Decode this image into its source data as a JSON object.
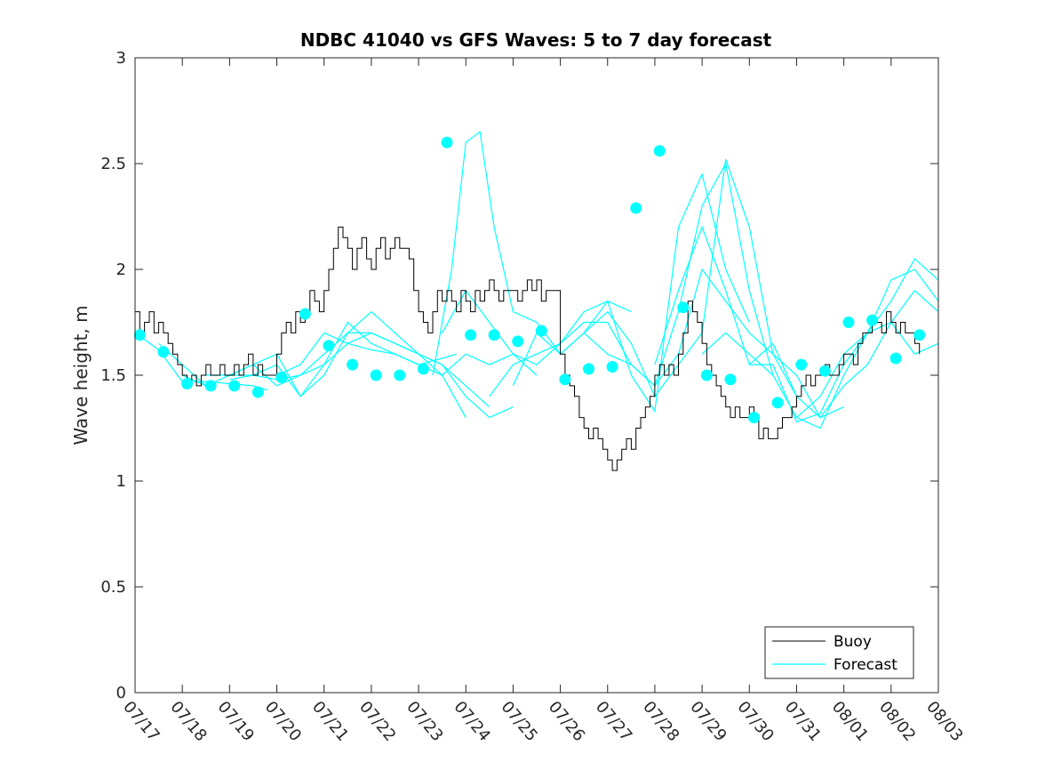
{
  "chart_data": {
    "type": "line",
    "title": "NDBC 41040 vs GFS Waves: 5 to 7 day forecast",
    "xlabel": "",
    "ylabel": "Wave height, m",
    "ylim": [
      0,
      3
    ],
    "yticks": [
      "0",
      "0.5",
      "1",
      "1.5",
      "2",
      "2.5",
      "3"
    ],
    "xlim": [
      "07/17",
      "08/03"
    ],
    "xticks": [
      "07/17",
      "07/18",
      "07/19",
      "07/20",
      "07/21",
      "07/22",
      "07/23",
      "07/24",
      "07/25",
      "07/26",
      "07/27",
      "07/28",
      "07/29",
      "07/30",
      "07/31",
      "08/01",
      "08/02",
      "08/03"
    ],
    "grid": false,
    "legend": {
      "placement": "bottom-right",
      "entries": [
        "Buoy",
        "Forecast"
      ]
    },
    "colors": {
      "buoy": "#000000",
      "forecast": "#00ffff"
    },
    "series": [
      {
        "name": "Buoy",
        "x_days": [
          0,
          0.1,
          0.2,
          0.3,
          0.4,
          0.5,
          0.6,
          0.7,
          0.8,
          0.9,
          1.0,
          1.1,
          1.2,
          1.3,
          1.4,
          1.5,
          1.6,
          1.7,
          1.8,
          1.9,
          2.0,
          2.1,
          2.2,
          2.3,
          2.4,
          2.5,
          2.6,
          2.7,
          2.8,
          2.9,
          3.0,
          3.1,
          3.2,
          3.3,
          3.4,
          3.5,
          3.6,
          3.7,
          3.8,
          3.9,
          4.0,
          4.1,
          4.2,
          4.3,
          4.4,
          4.5,
          4.6,
          4.7,
          4.8,
          4.9,
          5.0,
          5.1,
          5.2,
          5.3,
          5.4,
          5.5,
          5.6,
          5.7,
          5.8,
          5.9,
          6.0,
          6.1,
          6.2,
          6.3,
          6.4,
          6.5,
          6.6,
          6.7,
          6.8,
          6.9,
          7.0,
          7.1,
          7.2,
          7.3,
          7.4,
          7.5,
          7.6,
          7.7,
          7.8,
          7.9,
          8.0,
          8.1,
          8.2,
          8.3,
          8.4,
          8.5,
          8.6,
          8.7,
          8.8,
          8.9,
          9.0,
          9.1,
          9.2,
          9.3,
          9.4,
          9.5,
          9.6,
          9.7,
          9.8,
          9.9,
          10.0,
          10.1,
          10.2,
          10.3,
          10.4,
          10.5,
          10.6,
          10.7,
          10.8,
          10.9,
          11.0,
          11.1,
          11.2,
          11.3,
          11.4,
          11.5,
          11.6,
          11.7,
          11.8,
          11.9,
          12.0,
          12.1,
          12.2,
          12.3,
          12.4,
          12.5,
          12.6,
          12.7,
          12.8,
          12.9,
          13.0,
          13.1,
          13.2,
          13.3,
          13.4,
          13.5,
          13.6,
          13.7,
          13.8,
          13.9,
          14.0,
          14.1,
          14.2,
          14.3,
          14.4,
          14.5,
          14.6,
          14.7,
          14.8,
          14.9,
          15.0,
          15.1,
          15.2,
          15.3,
          15.4,
          15.5,
          15.6,
          15.7,
          15.8,
          15.9,
          16.0,
          16.1,
          16.2,
          16.3,
          16.4,
          16.5,
          16.6
        ],
        "values": [
          1.8,
          1.7,
          1.75,
          1.8,
          1.7,
          1.75,
          1.7,
          1.65,
          1.6,
          1.55,
          1.5,
          1.45,
          1.5,
          1.45,
          1.5,
          1.55,
          1.5,
          1.5,
          1.55,
          1.5,
          1.5,
          1.55,
          1.5,
          1.55,
          1.6,
          1.5,
          1.55,
          1.5,
          1.5,
          1.5,
          1.6,
          1.7,
          1.75,
          1.7,
          1.8,
          1.75,
          1.8,
          1.9,
          1.85,
          1.8,
          1.9,
          2.0,
          2.1,
          2.2,
          2.15,
          2.1,
          2.0,
          2.1,
          2.15,
          2.05,
          2.0,
          2.1,
          2.15,
          2.05,
          2.1,
          2.15,
          2.1,
          2.1,
          2.05,
          1.9,
          1.8,
          1.75,
          1.7,
          1.8,
          1.9,
          1.85,
          1.9,
          1.85,
          1.8,
          1.9,
          1.85,
          1.8,
          1.9,
          1.85,
          1.9,
          1.95,
          1.9,
          1.85,
          1.9,
          1.9,
          1.9,
          1.85,
          1.9,
          1.95,
          1.9,
          1.95,
          1.85,
          1.9,
          1.9,
          1.9,
          1.6,
          1.5,
          1.45,
          1.4,
          1.3,
          1.25,
          1.2,
          1.25,
          1.2,
          1.15,
          1.1,
          1.05,
          1.1,
          1.15,
          1.2,
          1.15,
          1.25,
          1.3,
          1.35,
          1.4,
          1.5,
          1.55,
          1.5,
          1.55,
          1.5,
          1.6,
          1.7,
          1.85,
          1.8,
          1.75,
          1.65,
          1.55,
          1.5,
          1.45,
          1.4,
          1.35,
          1.3,
          1.35,
          1.3,
          1.3,
          1.35,
          1.3,
          1.2,
          1.25,
          1.2,
          1.2,
          1.25,
          1.3,
          1.3,
          1.35,
          1.4,
          1.45,
          1.5,
          1.45,
          1.5,
          1.5,
          1.55,
          1.5,
          1.5,
          1.55,
          1.6,
          1.6,
          1.55,
          1.65,
          1.7,
          1.7,
          1.75,
          1.75,
          1.7,
          1.8,
          1.75,
          1.7,
          1.75,
          1.7,
          1.7,
          1.65,
          1.6
        ]
      },
      {
        "name": "Forecast",
        "runs": [
          {
            "x_days": [
              0,
              0.5,
              1.0,
              1.5,
              2.0,
              2.5,
              2.8
            ],
            "values": [
              1.7,
              1.62,
              1.47,
              1.47,
              1.46,
              1.45,
              1.43
            ]
          },
          {
            "x_days": [
              0.5,
              1.0,
              1.5,
              2.0,
              2.5,
              3.0,
              3.5,
              4.0,
              4.5,
              5.0,
              5.5,
              6.0,
              6.5,
              7.0
            ],
            "values": [
              1.65,
              1.55,
              1.45,
              1.5,
              1.55,
              1.6,
              1.4,
              1.5,
              1.7,
              1.8,
              1.7,
              1.6,
              1.5,
              1.3
            ]
          },
          {
            "x_days": [
              1.0,
              1.5,
              2.0,
              2.5,
              3.0,
              3.5,
              4.0,
              4.5,
              5.0,
              5.5,
              6.0,
              6.5,
              7.0,
              7.5
            ],
            "values": [
              1.5,
              1.45,
              1.5,
              1.55,
              1.45,
              1.5,
              1.6,
              1.7,
              1.7,
              1.65,
              1.6,
              1.55,
              1.45,
              1.35
            ]
          },
          {
            "x_days": [
              1.5,
              2.0,
              2.5,
              3.0,
              3.5,
              4.0,
              4.5,
              5.0,
              5.5,
              6.0,
              6.5,
              7.0,
              7.5,
              8.0
            ],
            "values": [
              1.5,
              1.5,
              1.5,
              1.48,
              1.5,
              1.55,
              1.65,
              1.7,
              1.65,
              1.6,
              1.55,
              1.4,
              1.3,
              1.35
            ]
          },
          {
            "x_days": [
              2.0,
              2.5,
              3.0,
              3.5,
              4.0,
              4.5,
              5.0,
              5.5,
              6.0,
              6.5,
              7.0,
              7.5,
              8.0,
              8.5
            ],
            "values": [
              1.48,
              1.5,
              1.55,
              1.4,
              1.55,
              1.75,
              1.65,
              1.6,
              1.55,
              1.5,
              1.6,
              1.55,
              1.6,
              1.5
            ]
          },
          {
            "x_days": [
              3.0,
              3.5,
              4.0,
              4.5,
              5.0,
              5.5,
              6.0,
              6.5,
              6.8
            ],
            "values": [
              1.5,
              1.55,
              1.7,
              1.65,
              1.62,
              1.6,
              1.55,
              1.58,
              1.6
            ]
          },
          {
            "x_days": [
              6.3,
              6.7,
              7.0,
              7.3,
              7.6,
              8.0,
              8.5,
              9.0,
              9.5,
              10.0,
              10.5
            ],
            "values": [
              1.5,
              2.0,
              2.6,
              2.65,
              2.2,
              1.8,
              1.75,
              1.6,
              1.7,
              1.85,
              1.8
            ]
          },
          {
            "x_days": [
              6.5,
              7.0,
              7.5,
              8.0,
              8.5,
              9.0,
              9.5,
              10.0,
              10.5,
              11.0,
              11.5,
              12.0,
              12.5,
              13.0
            ],
            "values": [
              1.7,
              1.9,
              1.75,
              1.6,
              1.55,
              1.65,
              1.8,
              1.85,
              1.5,
              1.33,
              2.2,
              2.45,
              2.0,
              1.75
            ]
          },
          {
            "x_days": [
              7.5,
              8.0,
              8.5,
              9.0,
              9.5,
              10.0,
              10.5,
              11.0,
              11.5,
              12.0,
              12.5,
              13.0,
              13.5
            ],
            "values": [
              1.4,
              1.55,
              1.6,
              1.65,
              1.75,
              1.75,
              1.55,
              1.45,
              1.8,
              2.3,
              2.5,
              1.9,
              1.5
            ]
          },
          {
            "x_days": [
              8.0,
              8.5,
              9.0,
              9.5,
              10.0,
              10.5,
              11.0,
              11.5,
              12.0,
              12.5,
              13.0,
              13.5,
              14.0
            ],
            "values": [
              1.45,
              1.7,
              1.6,
              1.7,
              1.8,
              1.65,
              1.4,
              1.55,
              1.7,
              2.52,
              2.2,
              1.6,
              1.4
            ]
          },
          {
            "x_days": [
              9.5,
              10.0,
              10.5,
              11.0,
              11.5,
              12.0,
              12.5,
              13.0,
              13.5,
              14.0,
              14.5,
              15.0
            ],
            "values": [
              1.7,
              1.6,
              1.55,
              1.45,
              1.6,
              2.0,
              1.85,
              1.7,
              1.6,
              1.5,
              1.3,
              1.35
            ]
          },
          {
            "x_days": [
              11.0,
              11.5,
              12.0,
              12.5,
              13.0,
              13.5,
              14.0,
              14.5,
              15.0,
              15.5,
              16.0,
              16.5,
              17.0
            ],
            "values": [
              1.55,
              1.9,
              2.2,
              1.9,
              1.55,
              1.65,
              1.4,
              1.3,
              1.45,
              1.55,
              1.75,
              1.9,
              1.8
            ]
          },
          {
            "x_days": [
              12.0,
              12.5,
              13.0,
              13.5,
              14.0,
              14.5,
              15.0,
              15.5,
              16.0,
              16.5,
              17.0
            ],
            "values": [
              1.6,
              1.7,
              1.6,
              1.5,
              1.3,
              1.25,
              1.5,
              1.7,
              1.95,
              2.0,
              1.85
            ]
          },
          {
            "x_days": [
              13.0,
              13.5,
              14.0,
              14.5,
              15.0,
              15.5,
              16.0,
              16.5,
              17.0
            ],
            "values": [
              1.55,
              1.55,
              1.28,
              1.32,
              1.55,
              1.7,
              1.85,
              2.05,
              1.95
            ]
          },
          {
            "x_days": [
              14.0,
              14.5,
              15.0,
              15.5,
              16.0,
              16.5,
              17.0
            ],
            "values": [
              1.3,
              1.4,
              1.6,
              1.7,
              1.75,
              1.6,
              1.65
            ]
          }
        ],
        "markers": {
          "x_days": [
            0.1,
            0.6,
            1.1,
            1.6,
            2.1,
            2.6,
            3.1,
            3.6,
            4.1,
            4.6,
            5.1,
            5.6,
            6.1,
            6.6,
            7.1,
            7.6,
            8.1,
            8.6,
            9.1,
            9.6,
            10.1,
            10.6,
            11.1,
            11.6,
            12.1,
            12.6,
            13.1,
            13.6,
            14.1,
            14.6,
            15.1,
            15.6,
            16.1,
            16.6
          ],
          "values": [
            1.69,
            1.61,
            1.46,
            1.45,
            1.45,
            1.42,
            1.49,
            1.79,
            1.64,
            1.55,
            1.5,
            1.5,
            1.53,
            2.6,
            1.69,
            1.69,
            1.66,
            1.71,
            1.48,
            1.53,
            1.54,
            2.29,
            2.56,
            1.82,
            1.5,
            1.48,
            1.3,
            1.37,
            1.55,
            1.52,
            1.75,
            1.76,
            1.58,
            1.69
          ]
        }
      }
    ]
  }
}
